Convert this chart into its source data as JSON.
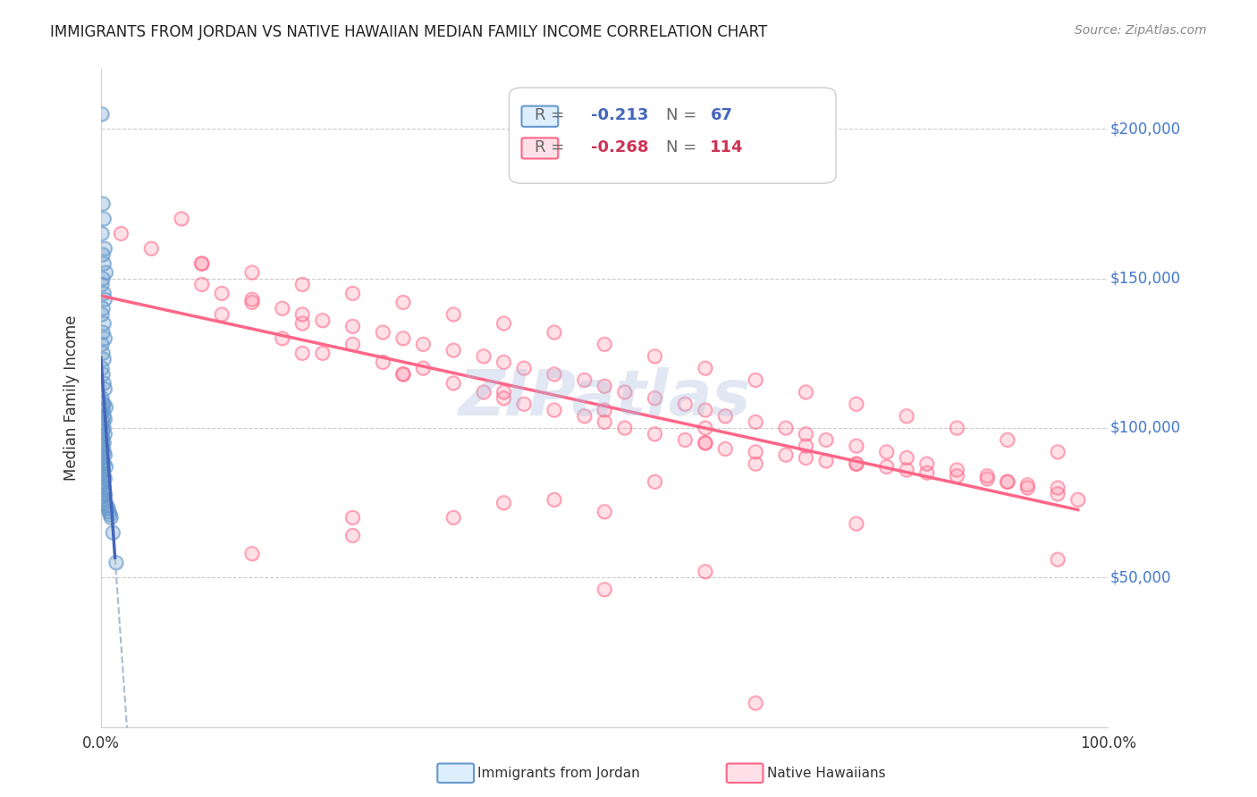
{
  "title": "IMMIGRANTS FROM JORDAN VS NATIVE HAWAIIAN MEDIAN FAMILY INCOME CORRELATION CHART",
  "source": "Source: ZipAtlas.com",
  "xlabel": "",
  "ylabel": "Median Family Income",
  "xlim": [
    0.0,
    1.0
  ],
  "ylim": [
    0,
    220000
  ],
  "yticks": [
    0,
    50000,
    100000,
    150000,
    200000
  ],
  "ytick_labels": [
    "",
    "$50,000",
    "$100,000",
    "$150,000",
    "$200,000"
  ],
  "xtick_labels": [
    "0.0%",
    "100.0%"
  ],
  "legend1_r": "-0.213",
  "legend1_n": "67",
  "legend2_r": "-0.268",
  "legend2_n": "114",
  "color_blue": "#6699CC",
  "color_pink": "#FF6688",
  "color_blue_line": "#4466BB",
  "color_pink_line": "#FF6688",
  "watermark": "ZIPatlas",
  "watermark_color": "#AABBDD",
  "background": "#FFFFFF",
  "jordan_x": [
    0.001,
    0.002,
    0.003,
    0.001,
    0.004,
    0.002,
    0.003,
    0.005,
    0.002,
    0.001,
    0.003,
    0.004,
    0.002,
    0.001,
    0.003,
    0.002,
    0.004,
    0.001,
    0.002,
    0.003,
    0.001,
    0.002,
    0.003,
    0.004,
    0.001,
    0.002,
    0.003,
    0.005,
    0.002,
    0.001,
    0.003,
    0.004,
    0.002,
    0.001,
    0.003,
    0.002,
    0.004,
    0.001,
    0.002,
    0.003,
    0.001,
    0.002,
    0.003,
    0.004,
    0.001,
    0.002,
    0.003,
    0.005,
    0.002,
    0.001,
    0.003,
    0.004,
    0.002,
    0.001,
    0.003,
    0.002,
    0.004,
    0.001,
    0.002,
    0.003,
    0.006,
    0.007,
    0.008,
    0.009,
    0.01,
    0.012,
    0.015
  ],
  "jordan_y": [
    205000,
    175000,
    170000,
    165000,
    160000,
    158000,
    155000,
    152000,
    150000,
    148000,
    145000,
    143000,
    140000,
    138000,
    135000,
    132000,
    130000,
    128000,
    125000,
    123000,
    120000,
    118000,
    115000,
    113000,
    110000,
    108000,
    108000,
    107000,
    106000,
    105000,
    104000,
    103000,
    102000,
    101000,
    100000,
    99000,
    98000,
    97000,
    96000,
    95000,
    94000,
    93000,
    92000,
    91000,
    90000,
    89000,
    88000,
    87000,
    86000,
    85000,
    84000,
    83000,
    82000,
    81000,
    80000,
    79000,
    78000,
    77000,
    76000,
    75000,
    74000,
    73000,
    72000,
    71000,
    70000,
    65000,
    55000
  ],
  "hawaiian_x": [
    0.02,
    0.05,
    0.08,
    0.1,
    0.12,
    0.15,
    0.18,
    0.2,
    0.22,
    0.25,
    0.28,
    0.3,
    0.32,
    0.35,
    0.38,
    0.4,
    0.42,
    0.45,
    0.48,
    0.5,
    0.52,
    0.55,
    0.58,
    0.6,
    0.62,
    0.65,
    0.68,
    0.7,
    0.72,
    0.75,
    0.78,
    0.8,
    0.82,
    0.85,
    0.88,
    0.9,
    0.92,
    0.95,
    0.1,
    0.12,
    0.15,
    0.18,
    0.2,
    0.22,
    0.25,
    0.28,
    0.3,
    0.32,
    0.35,
    0.38,
    0.4,
    0.42,
    0.45,
    0.48,
    0.5,
    0.52,
    0.55,
    0.58,
    0.6,
    0.62,
    0.65,
    0.68,
    0.7,
    0.72,
    0.75,
    0.78,
    0.8,
    0.82,
    0.85,
    0.88,
    0.9,
    0.92,
    0.95,
    0.97,
    0.1,
    0.15,
    0.2,
    0.25,
    0.3,
    0.35,
    0.4,
    0.45,
    0.5,
    0.55,
    0.6,
    0.65,
    0.7,
    0.75,
    0.8,
    0.85,
    0.9,
    0.95,
    0.2,
    0.3,
    0.4,
    0.5,
    0.6,
    0.7,
    0.75,
    0.65,
    0.55,
    0.45,
    0.35,
    0.25,
    0.15,
    0.95,
    0.75,
    0.5,
    0.25,
    0.6,
    0.4,
    0.5,
    0.6,
    0.65
  ],
  "hawaiian_y": [
    165000,
    160000,
    170000,
    155000,
    138000,
    142000,
    130000,
    135000,
    125000,
    128000,
    122000,
    118000,
    120000,
    115000,
    112000,
    110000,
    108000,
    106000,
    104000,
    102000,
    100000,
    98000,
    96000,
    95000,
    93000,
    92000,
    91000,
    90000,
    89000,
    88000,
    87000,
    86000,
    85000,
    84000,
    83000,
    82000,
    81000,
    80000,
    148000,
    145000,
    143000,
    140000,
    138000,
    136000,
    134000,
    132000,
    130000,
    128000,
    126000,
    124000,
    122000,
    120000,
    118000,
    116000,
    114000,
    112000,
    110000,
    108000,
    106000,
    104000,
    102000,
    100000,
    98000,
    96000,
    94000,
    92000,
    90000,
    88000,
    86000,
    84000,
    82000,
    80000,
    78000,
    76000,
    155000,
    152000,
    148000,
    145000,
    142000,
    138000,
    135000,
    132000,
    128000,
    124000,
    120000,
    116000,
    112000,
    108000,
    104000,
    100000,
    96000,
    92000,
    125000,
    118000,
    112000,
    106000,
    100000,
    94000,
    88000,
    88000,
    82000,
    76000,
    70000,
    64000,
    58000,
    56000,
    68000,
    72000,
    70000,
    95000,
    75000,
    46000,
    52000,
    8000
  ]
}
